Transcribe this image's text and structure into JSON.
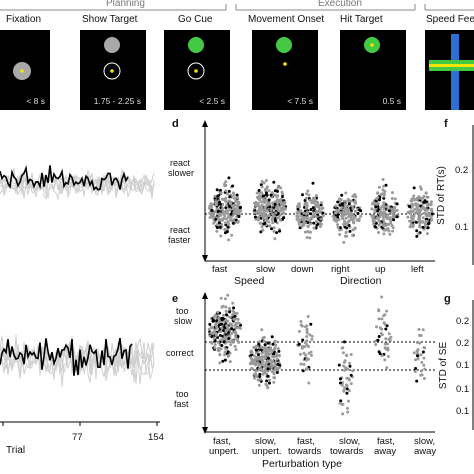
{
  "header": {
    "phases": [
      "Planning",
      "Execution"
    ],
    "speed_feedback_label": "Speed Fee"
  },
  "tiles": [
    {
      "label": "Fixation",
      "time": "< 8 s"
    },
    {
      "label": "Show Target",
      "time": "1.75 - 2.25 s"
    },
    {
      "label": "Go Cue",
      "time": "< 2.5 s"
    },
    {
      "label": "Movement Onset",
      "time": "< 7.5 s"
    },
    {
      "label": "Hit Target",
      "time": "0.5 s"
    }
  ],
  "panels": {
    "d": {
      "letter": "d",
      "react_slower": [
        "react",
        "slower"
      ],
      "react_faster": [
        "react",
        "faster"
      ],
      "categories": [
        "fast",
        "slow",
        "down",
        "right",
        "up",
        "left"
      ],
      "group_labels": [
        "Speed",
        "Direction"
      ]
    },
    "e": {
      "letter": "e",
      "too_slow": [
        "too",
        "slow"
      ],
      "correct": "correct",
      "too_fast": [
        "too",
        "fast"
      ],
      "categories": [
        [
          "fast,",
          "unpert."
        ],
        [
          "slow,",
          "unpert."
        ],
        [
          "fast,",
          "towards"
        ],
        [
          "slow,",
          "towards"
        ],
        [
          "fast,",
          "away"
        ],
        [
          "slow,",
          "away"
        ]
      ],
      "xlabel": "Perturbation type"
    },
    "f": {
      "letter": "f",
      "ylabel": "STD of RT(s)",
      "ticks": [
        "0.2",
        "0.1"
      ]
    },
    "g": {
      "letter": "g",
      "ylabel": "STD of SE",
      "ticks": [
        "0.2",
        "0.2",
        "0.1",
        "0.1",
        "0.1"
      ]
    },
    "left_bottom": {
      "ticks": [
        "77",
        "154"
      ],
      "xlabel": "Trial"
    }
  },
  "colors": {
    "black": "#000000",
    "green": "#44c944",
    "gray": "#a9a9a9",
    "yellow": "#f2e600",
    "blue": "#2e6fd6",
    "light_gray": "#cccccc"
  }
}
